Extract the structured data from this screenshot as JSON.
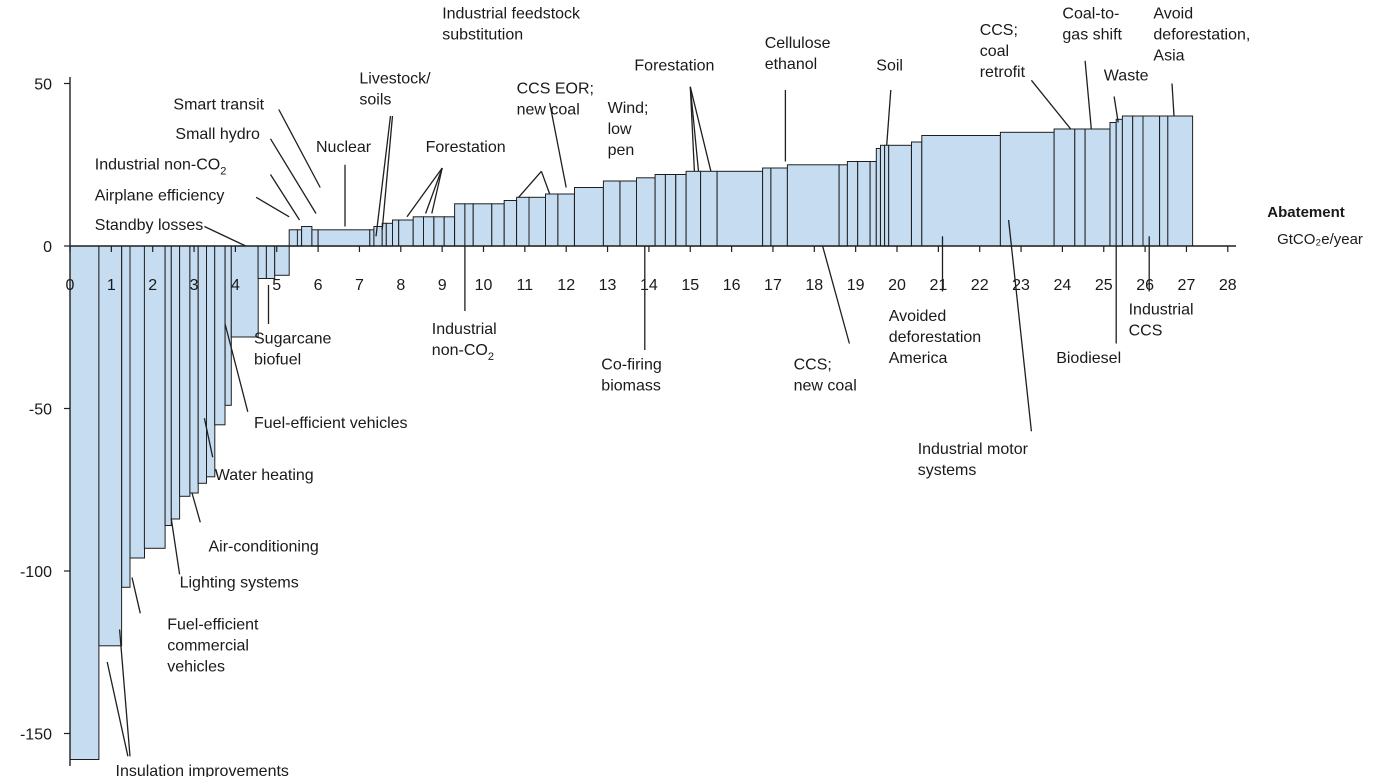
{
  "chart_data": {
    "type": "bar",
    "variant": "marginal abatement cost curve (variable-width bars)",
    "xlabel": [
      "Abatement",
      "GtCO₂e/year"
    ],
    "ylabel": "",
    "xlim": [
      0,
      28
    ],
    "ylim": [
      -160,
      50
    ],
    "x_ticks": [
      "0",
      "1",
      "2",
      "3",
      "4",
      "5",
      "6",
      "7",
      "8",
      "9",
      "10",
      "11",
      "12",
      "13",
      "14",
      "15",
      "16",
      "17",
      "18",
      "19",
      "20",
      "21",
      "22",
      "23",
      "24",
      "25",
      "26",
      "27",
      "28"
    ],
    "y_ticks": [
      "50",
      "0",
      "-50",
      "-100",
      "-150"
    ],
    "bar_fill": "#c5dcf1",
    "bar_edge": "#1f1f1f",
    "bars": [
      {
        "x0": 0.0,
        "x1": 0.7,
        "y": -158
      },
      {
        "x0": 0.7,
        "x1": 1.25,
        "y": -123
      },
      {
        "x0": 1.25,
        "x1": 1.45,
        "y": -105
      },
      {
        "x0": 1.45,
        "x1": 1.8,
        "y": -96
      },
      {
        "x0": 1.8,
        "x1": 2.3,
        "y": -93
      },
      {
        "x0": 2.3,
        "x1": 2.45,
        "y": -86
      },
      {
        "x0": 2.45,
        "x1": 2.65,
        "y": -84
      },
      {
        "x0": 2.65,
        "x1": 2.9,
        "y": -77
      },
      {
        "x0": 2.9,
        "x1": 3.1,
        "y": -76
      },
      {
        "x0": 3.1,
        "x1": 3.3,
        "y": -73
      },
      {
        "x0": 3.3,
        "x1": 3.5,
        "y": -71
      },
      {
        "x0": 3.5,
        "x1": 3.75,
        "y": -55
      },
      {
        "x0": 3.75,
        "x1": 3.9,
        "y": -49
      },
      {
        "x0": 3.9,
        "x1": 4.55,
        "y": -28
      },
      {
        "x0": 4.55,
        "x1": 4.75,
        "y": -10
      },
      {
        "x0": 4.75,
        "x1": 4.95,
        "y": -10
      },
      {
        "x0": 4.95,
        "x1": 5.3,
        "y": -9
      },
      {
        "x0": 5.3,
        "x1": 5.5,
        "y": 5
      },
      {
        "x0": 5.5,
        "x1": 5.6,
        "y": 5
      },
      {
        "x0": 5.6,
        "x1": 5.85,
        "y": 6
      },
      {
        "x0": 5.85,
        "x1": 6.0,
        "y": 5
      },
      {
        "x0": 6.0,
        "x1": 7.25,
        "y": 5
      },
      {
        "x0": 7.25,
        "x1": 7.35,
        "y": 5
      },
      {
        "x0": 7.35,
        "x1": 7.55,
        "y": 6
      },
      {
        "x0": 7.55,
        "x1": 7.65,
        "y": 7
      },
      {
        "x0": 7.65,
        "x1": 7.8,
        "y": 7
      },
      {
        "x0": 7.8,
        "x1": 7.95,
        "y": 8
      },
      {
        "x0": 7.95,
        "x1": 8.3,
        "y": 8
      },
      {
        "x0": 8.3,
        "x1": 8.55,
        "y": 9
      },
      {
        "x0": 8.55,
        "x1": 8.8,
        "y": 9
      },
      {
        "x0": 8.8,
        "x1": 9.05,
        "y": 9
      },
      {
        "x0": 9.05,
        "x1": 9.3,
        "y": 9
      },
      {
        "x0": 9.3,
        "x1": 9.55,
        "y": 13
      },
      {
        "x0": 9.55,
        "x1": 9.75,
        "y": 13
      },
      {
        "x0": 9.75,
        "x1": 10.2,
        "y": 13
      },
      {
        "x0": 10.2,
        "x1": 10.5,
        "y": 13
      },
      {
        "x0": 10.5,
        "x1": 10.8,
        "y": 14
      },
      {
        "x0": 10.8,
        "x1": 11.1,
        "y": 15
      },
      {
        "x0": 11.1,
        "x1": 11.5,
        "y": 15
      },
      {
        "x0": 11.5,
        "x1": 11.8,
        "y": 16
      },
      {
        "x0": 11.8,
        "x1": 12.2,
        "y": 16
      },
      {
        "x0": 12.2,
        "x1": 12.9,
        "y": 18
      },
      {
        "x0": 12.9,
        "x1": 13.3,
        "y": 20
      },
      {
        "x0": 13.3,
        "x1": 13.7,
        "y": 20
      },
      {
        "x0": 13.7,
        "x1": 14.15,
        "y": 21
      },
      {
        "x0": 14.15,
        "x1": 14.4,
        "y": 22
      },
      {
        "x0": 14.4,
        "x1": 14.65,
        "y": 22
      },
      {
        "x0": 14.65,
        "x1": 14.9,
        "y": 22
      },
      {
        "x0": 14.9,
        "x1": 15.25,
        "y": 23
      },
      {
        "x0": 15.25,
        "x1": 15.65,
        "y": 23
      },
      {
        "x0": 15.65,
        "x1": 16.75,
        "y": 23
      },
      {
        "x0": 16.75,
        "x1": 16.95,
        "y": 24
      },
      {
        "x0": 16.95,
        "x1": 17.35,
        "y": 24
      },
      {
        "x0": 17.35,
        "x1": 18.6,
        "y": 25
      },
      {
        "x0": 18.6,
        "x1": 18.8,
        "y": 25
      },
      {
        "x0": 18.8,
        "x1": 19.05,
        "y": 26
      },
      {
        "x0": 19.05,
        "x1": 19.35,
        "y": 26
      },
      {
        "x0": 19.35,
        "x1": 19.5,
        "y": 26
      },
      {
        "x0": 19.5,
        "x1": 19.6,
        "y": 30
      },
      {
        "x0": 19.6,
        "x1": 19.7,
        "y": 31
      },
      {
        "x0": 19.7,
        "x1": 19.8,
        "y": 31
      },
      {
        "x0": 19.8,
        "x1": 20.35,
        "y": 31
      },
      {
        "x0": 20.35,
        "x1": 20.6,
        "y": 32
      },
      {
        "x0": 20.6,
        "x1": 22.5,
        "y": 34
      },
      {
        "x0": 22.5,
        "x1": 23.8,
        "y": 35
      },
      {
        "x0": 23.8,
        "x1": 24.3,
        "y": 36
      },
      {
        "x0": 24.3,
        "x1": 24.55,
        "y": 36
      },
      {
        "x0": 24.55,
        "x1": 25.15,
        "y": 36
      },
      {
        "x0": 25.15,
        "x1": 25.3,
        "y": 38
      },
      {
        "x0": 25.3,
        "x1": 25.45,
        "y": 39
      },
      {
        "x0": 25.45,
        "x1": 25.7,
        "y": 40
      },
      {
        "x0": 25.7,
        "x1": 25.95,
        "y": 40
      },
      {
        "x0": 25.95,
        "x1": 26.35,
        "y": 40
      },
      {
        "x0": 26.35,
        "x1": 26.55,
        "y": 40
      },
      {
        "x0": 26.55,
        "x1": 27.15,
        "y": 40
      }
    ],
    "annotations": [
      {
        "lines": [
          "Smart transit"
        ],
        "tx": 2.5,
        "ty": 42,
        "anchor": "start",
        "leader": [
          [
            5.05,
            42
          ],
          [
            6.05,
            18
          ]
        ]
      },
      {
        "lines": [
          "Small hydro"
        ],
        "tx": 2.55,
        "ty": 33,
        "anchor": "start",
        "leader": [
          [
            4.85,
            33
          ],
          [
            5.95,
            10
          ]
        ]
      },
      {
        "lines": [
          "Industrial non-CO",
          "2"
        ],
        "sub": true,
        "tx": 0.6,
        "ty": 23.5,
        "anchor": "start",
        "leader": [
          [
            4.85,
            22
          ],
          [
            5.55,
            8
          ]
        ]
      },
      {
        "lines": [
          "Airplane efficiency"
        ],
        "tx": 0.6,
        "ty": 14,
        "anchor": "start",
        "leader": [
          [
            4.5,
            15
          ],
          [
            5.3,
            9
          ]
        ]
      },
      {
        "lines": [
          "Standby losses"
        ],
        "tx": 0.6,
        "ty": 5,
        "anchor": "start",
        "leader": [
          [
            3.25,
            6
          ],
          [
            4.25,
            0
          ]
        ]
      },
      {
        "lines": [
          "Nuclear"
        ],
        "tx": 5.95,
        "ty": 29,
        "anchor": "start",
        "leader": [
          [
            6.65,
            25
          ],
          [
            6.65,
            6
          ]
        ]
      },
      {
        "lines": [
          "Livestock/",
          "soils"
        ],
        "tx": 7.0,
        "ty": 50,
        "anchor": "start",
        "leader": [
          [
            7.75,
            40
          ],
          [
            7.4,
            3
          ]
        ],
        "extra_leaders": [
          [
            [
              7.8,
              40
            ],
            [
              7.55,
              5
            ]
          ]
        ]
      },
      {
        "lines": [
          "Forestation"
        ],
        "tx": 8.6,
        "ty": 29,
        "anchor": "start",
        "leader": [
          [
            9.0,
            24
          ],
          [
            8.15,
            9
          ]
        ],
        "extra_leaders": [
          [
            [
              9.0,
              24
            ],
            [
              8.6,
              10
            ]
          ],
          [
            [
              9.0,
              24
            ],
            [
              8.75,
              10
            ]
          ]
        ]
      },
      {
        "lines": [
          "CCS EOR;",
          "new coal"
        ],
        "tx": 10.8,
        "ty": 47,
        "anchor": "start",
        "leader": [
          [
            11.4,
            23
          ],
          [
            10.85,
            15
          ]
        ],
        "extra_leaders": [
          [
            [
              11.4,
              23
            ],
            [
              11.6,
              16
            ]
          ]
        ]
      },
      {
        "lines": [
          "Industrial feedstock",
          "substitution"
        ],
        "tx": 9.0,
        "ty": 70,
        "anchor": "start",
        "leader": [
          [
            11.6,
            44
          ],
          [
            12.0,
            18
          ]
        ]
      },
      {
        "lines": [
          "Wind;",
          "low",
          "pen"
        ],
        "tx": 13.0,
        "ty": 41,
        "anchor": "start",
        "leader": []
      },
      {
        "lines": [
          "Forestation"
        ],
        "tx": 13.65,
        "ty": 54,
        "anchor": "start",
        "leader": [
          [
            15.0,
            49
          ],
          [
            15.1,
            23
          ]
        ],
        "extra_leaders": [
          [
            [
              15.0,
              49
            ],
            [
              15.2,
              23
            ]
          ],
          [
            [
              15.0,
              49
            ],
            [
              15.5,
              23
            ]
          ]
        ]
      },
      {
        "lines": [
          "Cellulose",
          "ethanol"
        ],
        "tx": 16.8,
        "ty": 61,
        "anchor": "start",
        "leader": [
          [
            17.3,
            48
          ],
          [
            17.3,
            26
          ]
        ]
      },
      {
        "lines": [
          "Soil"
        ],
        "tx": 19.5,
        "ty": 54,
        "anchor": "start",
        "leader": [
          [
            19.85,
            48
          ],
          [
            19.75,
            31
          ]
        ]
      },
      {
        "lines": [
          "CCS;",
          "coal",
          "retrofit"
        ],
        "tx": 22.0,
        "ty": 65,
        "anchor": "start",
        "leader": [
          [
            23.25,
            51
          ],
          [
            24.2,
            36
          ]
        ]
      },
      {
        "lines": [
          "Coal-to-",
          "gas shift"
        ],
        "tx": 24.0,
        "ty": 70,
        "anchor": "start",
        "leader": [
          [
            24.55,
            57
          ],
          [
            24.7,
            36
          ]
        ]
      },
      {
        "lines": [
          "Waste"
        ],
        "tx": 25.0,
        "ty": 51,
        "anchor": "start",
        "leader": [
          [
            25.25,
            46
          ],
          [
            25.35,
            38
          ]
        ]
      },
      {
        "lines": [
          "Avoid",
          "deforestation,",
          "Asia"
        ],
        "tx": 26.2,
        "ty": 70,
        "anchor": "start",
        "leader": [
          [
            26.65,
            50
          ],
          [
            26.7,
            40
          ]
        ]
      },
      {
        "lines": [
          "Sugarcane",
          "biofuel"
        ],
        "tx": 4.45,
        "ty": -30,
        "anchor": "start",
        "leader": [
          [
            4.8,
            -12
          ],
          [
            4.8,
            -24
          ]
        ]
      },
      {
        "lines": [
          "Industrial",
          "non-CO",
          "2"
        ],
        "sub": true,
        "tx": 8.75,
        "ty": -27,
        "anchor": "start",
        "leader": [
          [
            9.55,
            0
          ],
          [
            9.55,
            -20
          ]
        ]
      },
      {
        "lines": [
          "Co-firing",
          "biomass"
        ],
        "tx": 12.85,
        "ty": -38,
        "anchor": "start",
        "leader": [
          [
            13.9,
            0
          ],
          [
            13.9,
            -32
          ]
        ]
      },
      {
        "lines": [
          "CCS;",
          "new coal"
        ],
        "tx": 17.5,
        "ty": -38,
        "anchor": "start",
        "leader": [
          [
            18.2,
            0
          ],
          [
            18.85,
            -30
          ]
        ]
      },
      {
        "lines": [
          "Avoided",
          "deforestation",
          "America"
        ],
        "tx": 19.8,
        "ty": -23,
        "anchor": "start",
        "leader": [
          [
            21.1,
            3
          ],
          [
            21.1,
            -14
          ]
        ]
      },
      {
        "lines": [
          "Industrial motor",
          "systems"
        ],
        "tx": 20.5,
        "ty": -64,
        "anchor": "start",
        "leader": [
          [
            22.7,
            8
          ],
          [
            23.25,
            -57
          ]
        ]
      },
      {
        "lines": [
          "Biodiesel"
        ],
        "tx": 23.85,
        "ty": -36,
        "anchor": "start",
        "leader": [
          [
            25.3,
            0
          ],
          [
            25.3,
            -30
          ]
        ]
      },
      {
        "lines": [
          "Industrial",
          "CCS"
        ],
        "tx": 25.6,
        "ty": -21,
        "anchor": "start",
        "leader": [
          [
            26.1,
            3
          ],
          [
            26.1,
            -14
          ]
        ]
      },
      {
        "lines": [
          "Fuel-efficient vehicles"
        ],
        "tx": 4.45,
        "ty": -56,
        "anchor": "start",
        "leader": [
          [
            4.3,
            -51
          ],
          [
            3.75,
            -24
          ]
        ]
      },
      {
        "lines": [
          "Water heating"
        ],
        "tx": 3.5,
        "ty": -72,
        "anchor": "start",
        "leader": [
          [
            3.45,
            -65
          ],
          [
            3.25,
            -53
          ]
        ]
      },
      {
        "lines": [
          "Air-conditioning"
        ],
        "tx": 3.35,
        "ty": -94,
        "anchor": "start",
        "leader": [
          [
            3.15,
            -85
          ],
          [
            2.95,
            -76
          ]
        ]
      },
      {
        "lines": [
          "Lighting systems"
        ],
        "tx": 2.65,
        "ty": -105,
        "anchor": "start",
        "leader": [
          [
            2.65,
            -101
          ],
          [
            2.45,
            -84
          ]
        ]
      },
      {
        "lines": [
          "Fuel-efficient",
          "commercial",
          "vehicles"
        ],
        "tx": 2.35,
        "ty": -118,
        "anchor": "start",
        "leader": [
          [
            1.7,
            -113
          ],
          [
            1.5,
            -102
          ]
        ]
      },
      {
        "lines": [
          "Insulation improvements"
        ],
        "tx": 1.1,
        "ty": -163,
        "anchor": "start",
        "leader": [
          [
            1.4,
            -157
          ],
          [
            0.9,
            -128
          ]
        ],
        "extra_leaders": [
          [
            [
              1.45,
              -157
            ],
            [
              1.2,
              -118
            ]
          ]
        ]
      }
    ]
  }
}
